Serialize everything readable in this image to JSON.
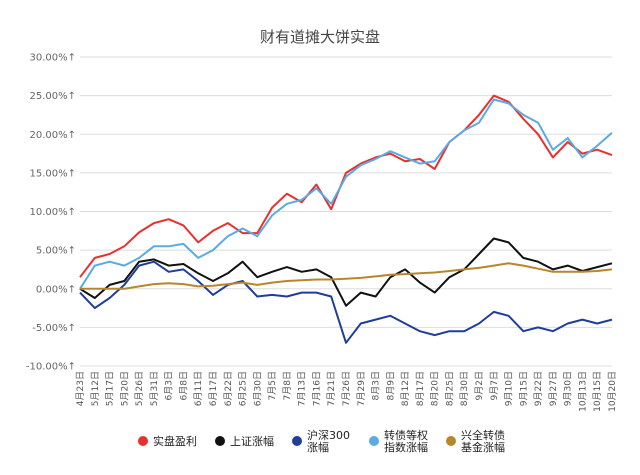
{
  "chart_data": {
    "type": "line",
    "title": "财有道摊大饼实盘",
    "xlabel": "",
    "ylabel": "",
    "ylim": [
      -10,
      30
    ],
    "yticks": [
      "-10.00%↑",
      "-5.00%↑",
      "0.00%↑",
      "5.00%↑",
      "10.00%↑",
      "15.00%↑",
      "20.00%↑",
      "25.00%↑",
      "30.00%↑"
    ],
    "ytick_values": [
      -10,
      -5,
      0,
      5,
      10,
      15,
      20,
      25,
      30
    ],
    "grid": true,
    "legend_position": "bottom",
    "x": [
      "4月23日",
      "5月12日",
      "5月17日",
      "5月20日",
      "5月26日",
      "5月31日",
      "6月3日",
      "6月8日",
      "6月11日",
      "6月17日",
      "6月22日",
      "6月25日",
      "6月30日",
      "7月5日",
      "7月8日",
      "7月13日",
      "7月16日",
      "7月21日",
      "7月26日",
      "7月29日",
      "8月3日",
      "8月9日",
      "8月12日",
      "8月17日",
      "8月20日",
      "8月25日",
      "8月30日",
      "9月2日",
      "9月7日",
      "9月10日",
      "9月15日",
      "9月22日",
      "9月27日",
      "9月30日",
      "10月13日",
      "10月15日",
      "10月20日"
    ],
    "series": [
      {
        "name": "实盘盈利",
        "color": "#e8312f",
        "values": [
          1.5,
          4.0,
          4.5,
          5.5,
          7.3,
          8.5,
          9.0,
          8.2,
          6.0,
          7.5,
          8.5,
          7.2,
          7.2,
          10.5,
          12.3,
          11.2,
          13.5,
          10.3,
          15.0,
          16.2,
          17.0,
          17.5,
          16.5,
          16.8,
          15.5,
          19.0,
          20.5,
          22.5,
          25.0,
          24.2,
          22.0,
          20.0,
          17.0,
          19.0,
          17.5,
          18.0,
          17.3
        ]
      },
      {
        "name": "上证涨幅",
        "color": "#111111",
        "values": [
          0.0,
          -1.2,
          0.5,
          1.0,
          3.5,
          3.8,
          3.0,
          3.2,
          2.0,
          1.0,
          2.0,
          3.5,
          1.5,
          2.2,
          2.8,
          2.2,
          2.5,
          1.5,
          -2.2,
          -0.5,
          -1.0,
          1.5,
          2.5,
          0.8,
          -0.5,
          1.5,
          2.5,
          4.5,
          6.5,
          6.0,
          4.0,
          3.5,
          2.5,
          3.0,
          2.3,
          2.8,
          3.3
        ]
      },
      {
        "name": "沪深300涨幅",
        "color": "#1f3e9b",
        "values": [
          -0.5,
          -2.5,
          -1.2,
          0.5,
          3.0,
          3.5,
          2.2,
          2.5,
          1.0,
          -0.8,
          0.5,
          1.0,
          -1.0,
          -0.8,
          -1.0,
          -0.5,
          -0.5,
          -1.0,
          -7.0,
          -4.5,
          -4.0,
          -3.5,
          -4.5,
          -5.5,
          -6.0,
          -5.5,
          -5.5,
          -4.5,
          -3.0,
          -3.5,
          -5.5,
          -5.0,
          -5.5,
          -4.5,
          -4.0,
          -4.5,
          -4.0
        ]
      },
      {
        "name": "转债等权指数涨幅",
        "color": "#5aabe3",
        "values": [
          0.0,
          3.0,
          3.5,
          3.0,
          4.0,
          5.5,
          5.5,
          5.8,
          4.0,
          5.0,
          6.8,
          7.8,
          6.8,
          9.5,
          11.0,
          11.5,
          13.0,
          11.0,
          14.5,
          16.0,
          16.8,
          17.8,
          17.0,
          16.2,
          16.5,
          19.0,
          20.5,
          21.5,
          24.5,
          24.0,
          22.5,
          21.5,
          18.0,
          19.5,
          17.0,
          18.5,
          20.2
        ]
      },
      {
        "name": "兴全转债基金涨幅",
        "color": "#b8862b",
        "values": [
          0.0,
          0.0,
          0.0,
          0.0,
          0.3,
          0.6,
          0.7,
          0.6,
          0.3,
          0.4,
          0.6,
          0.8,
          0.5,
          0.8,
          1.0,
          1.1,
          1.2,
          1.2,
          1.3,
          1.4,
          1.6,
          1.8,
          1.9,
          2.0,
          2.1,
          2.3,
          2.5,
          2.7,
          3.0,
          3.3,
          3.0,
          2.6,
          2.2,
          2.2,
          2.2,
          2.3,
          2.5
        ]
      }
    ],
    "legend": [
      {
        "lines": [
          "实盘盈利"
        ],
        "color": "#e8312f"
      },
      {
        "lines": [
          "上证涨幅"
        ],
        "color": "#111111"
      },
      {
        "lines": [
          "沪深300",
          "涨幅"
        ],
        "color": "#1f3e9b"
      },
      {
        "lines": [
          "转债等权",
          "指数涨幅"
        ],
        "color": "#5aabe3"
      },
      {
        "lines": [
          "兴全转债",
          "基金涨幅"
        ],
        "color": "#b8862b"
      }
    ]
  }
}
